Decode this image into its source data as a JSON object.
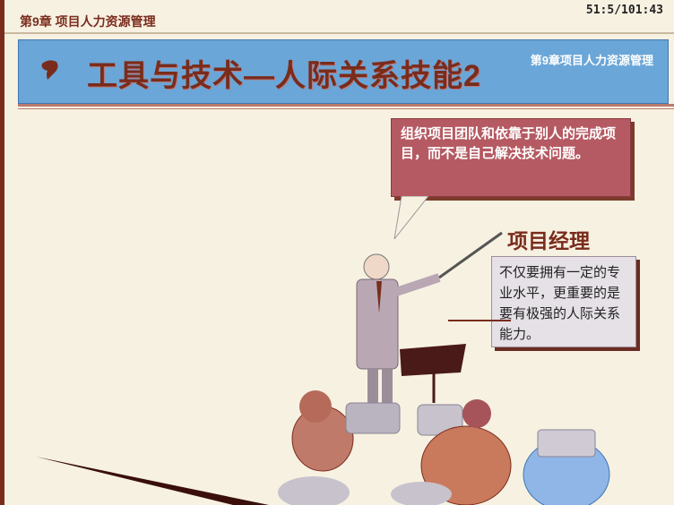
{
  "header": {
    "chapter": "第9章 项目人力资源管理",
    "page_counter": "51:5/101:43"
  },
  "title_bar": {
    "title": "工具与技术—人际关系技能2",
    "subtitle": "第9章项目人力资源管理"
  },
  "speech_bubble": {
    "text": "组织项目团队和依靠于别人的完成项目，而不是自己解决技术问题。"
  },
  "project_manager": {
    "label": "项目经理",
    "description": "不仅要拥有一定的专业水平，更重要的是要有极强的人际关系能力。"
  },
  "colors": {
    "frame": "#7a2c1c",
    "title_bar": "#6aa6d8",
    "bubble": "#b55a62",
    "note_box": "#e5e1e6"
  }
}
